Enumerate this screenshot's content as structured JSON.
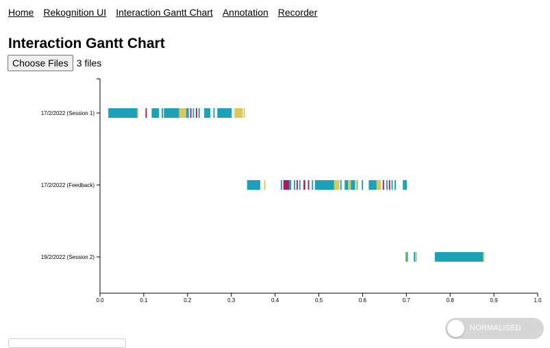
{
  "nav": {
    "items": [
      {
        "label": "Home",
        "name": "nav-home"
      },
      {
        "label": "Rekognition UI",
        "name": "nav-rekognition-ui"
      },
      {
        "label": "Interaction Gantt Chart",
        "name": "nav-interaction-gantt-chart"
      },
      {
        "label": "Annotation",
        "name": "nav-annotation"
      },
      {
        "label": "Recorder",
        "name": "nav-recorder"
      }
    ]
  },
  "page": {
    "title": "Interaction Gantt Chart"
  },
  "file_input": {
    "button_label": "Choose Files",
    "status": "3 files"
  },
  "toggle": {
    "label": "NORMALISED",
    "on": false
  },
  "colors": {
    "teal": "#1ba1b8",
    "yellow": "#d9c85a",
    "magenta": "#a8195e",
    "green": "#6fbe45",
    "axis": "#000000"
  },
  "chart_data": {
    "type": "gantt",
    "xlim": [
      0.0,
      1.0
    ],
    "x_ticks": [
      "0.0",
      "0.1",
      "0.2",
      "0.3",
      "0.4",
      "0.5",
      "0.6",
      "0.7",
      "0.8",
      "0.9",
      "1.0"
    ],
    "rows": [
      {
        "label": "17/2/2022 (Session 1)",
        "segments": [
          {
            "start": 0.019,
            "end": 0.085,
            "color": "teal"
          },
          {
            "start": 0.085,
            "end": 0.088,
            "color": "yellow"
          },
          {
            "start": 0.104,
            "end": 0.107,
            "color": "magenta"
          },
          {
            "start": 0.118,
            "end": 0.135,
            "color": "teal"
          },
          {
            "start": 0.141,
            "end": 0.144,
            "color": "teal"
          },
          {
            "start": 0.146,
            "end": 0.181,
            "color": "teal"
          },
          {
            "start": 0.181,
            "end": 0.197,
            "color": "yellow"
          },
          {
            "start": 0.197,
            "end": 0.203,
            "color": "teal"
          },
          {
            "start": 0.206,
            "end": 0.209,
            "color": "magenta"
          },
          {
            "start": 0.212,
            "end": 0.215,
            "color": "teal"
          },
          {
            "start": 0.219,
            "end": 0.222,
            "color": "magenta"
          },
          {
            "start": 0.225,
            "end": 0.228,
            "color": "teal"
          },
          {
            "start": 0.238,
            "end": 0.252,
            "color": "teal"
          },
          {
            "start": 0.259,
            "end": 0.262,
            "color": "teal"
          },
          {
            "start": 0.268,
            "end": 0.301,
            "color": "teal"
          },
          {
            "start": 0.307,
            "end": 0.326,
            "color": "yellow"
          },
          {
            "start": 0.328,
            "end": 0.331,
            "color": "yellow"
          }
        ]
      },
      {
        "label": "17/2/2022 (Feedback)",
        "segments": [
          {
            "start": 0.336,
            "end": 0.366,
            "color": "teal"
          },
          {
            "start": 0.375,
            "end": 0.378,
            "color": "yellow"
          },
          {
            "start": 0.413,
            "end": 0.416,
            "color": "teal"
          },
          {
            "start": 0.419,
            "end": 0.432,
            "color": "magenta"
          },
          {
            "start": 0.432,
            "end": 0.437,
            "color": "teal"
          },
          {
            "start": 0.443,
            "end": 0.446,
            "color": "teal"
          },
          {
            "start": 0.449,
            "end": 0.452,
            "color": "magenta"
          },
          {
            "start": 0.455,
            "end": 0.458,
            "color": "teal"
          },
          {
            "start": 0.465,
            "end": 0.469,
            "color": "magenta"
          },
          {
            "start": 0.475,
            "end": 0.478,
            "color": "magenta"
          },
          {
            "start": 0.484,
            "end": 0.487,
            "color": "teal"
          },
          {
            "start": 0.491,
            "end": 0.535,
            "color": "teal"
          },
          {
            "start": 0.535,
            "end": 0.547,
            "color": "yellow"
          },
          {
            "start": 0.549,
            "end": 0.552,
            "color": "teal"
          },
          {
            "start": 0.559,
            "end": 0.567,
            "color": "teal"
          },
          {
            "start": 0.567,
            "end": 0.573,
            "color": "yellow"
          },
          {
            "start": 0.573,
            "end": 0.583,
            "color": "teal"
          },
          {
            "start": 0.586,
            "end": 0.589,
            "color": "green"
          },
          {
            "start": 0.598,
            "end": 0.601,
            "color": "teal"
          },
          {
            "start": 0.614,
            "end": 0.632,
            "color": "teal"
          },
          {
            "start": 0.632,
            "end": 0.642,
            "color": "yellow"
          },
          {
            "start": 0.646,
            "end": 0.649,
            "color": "magenta"
          },
          {
            "start": 0.654,
            "end": 0.657,
            "color": "teal"
          },
          {
            "start": 0.66,
            "end": 0.663,
            "color": "magenta"
          },
          {
            "start": 0.666,
            "end": 0.669,
            "color": "teal"
          },
          {
            "start": 0.673,
            "end": 0.676,
            "color": "teal"
          },
          {
            "start": 0.692,
            "end": 0.701,
            "color": "teal"
          }
        ]
      },
      {
        "label": "19/2/2022 (Session 2)",
        "segments": [
          {
            "start": 0.698,
            "end": 0.701,
            "color": "green"
          },
          {
            "start": 0.701,
            "end": 0.703,
            "color": "teal"
          },
          {
            "start": 0.717,
            "end": 0.72,
            "color": "teal"
          },
          {
            "start": 0.721,
            "end": 0.723,
            "color": "green"
          },
          {
            "start": 0.765,
            "end": 0.874,
            "color": "teal"
          },
          {
            "start": 0.874,
            "end": 0.877,
            "color": "green"
          }
        ]
      }
    ]
  }
}
